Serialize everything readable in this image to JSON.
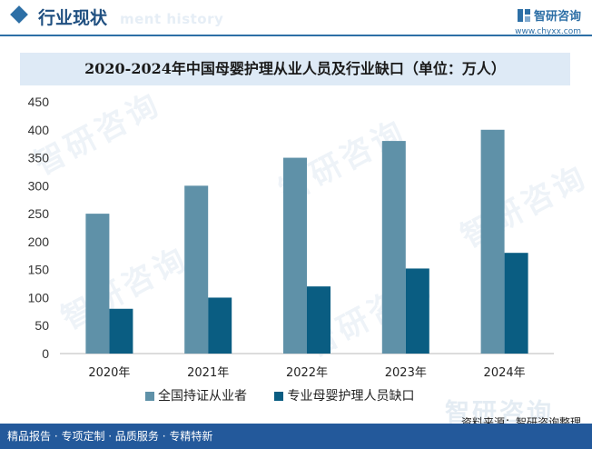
{
  "header": {
    "title": "行业现状",
    "ghost_text": "ment history",
    "brand_name": "智研咨询",
    "brand_url": "www.chyxx.com"
  },
  "watermark": {
    "text": "智研咨询"
  },
  "legend": {
    "items": [
      {
        "label": "全国持证从业者",
        "color": "#5f91a8"
      },
      {
        "label": "专业母婴护理人员缺口",
        "color": "#0a5d82"
      }
    ]
  },
  "source": {
    "mark": "智研咨询",
    "text": "资料来源：智研咨询整理"
  },
  "footer": {
    "text": "精品报告 · 专项定制 · 品质服务 · 专精特新"
  },
  "chart_data": {
    "type": "bar",
    "title": "2020-2024年中国母婴护理从业人员及行业缺口（单位：万人）",
    "xlabel": "",
    "ylabel": "",
    "categories": [
      "2020年",
      "2021年",
      "2022年",
      "2023年",
      "2024年"
    ],
    "ylim": [
      0,
      450
    ],
    "yticks": [
      0,
      50,
      100,
      150,
      200,
      250,
      300,
      350,
      400,
      450
    ],
    "grid": false,
    "legend_position": "bottom",
    "series": [
      {
        "name": "全国持证从业者",
        "values": [
          250,
          300,
          350,
          380,
          400
        ],
        "color": "#5f91a8"
      },
      {
        "name": "专业母婴护理人员缺口",
        "values": [
          80,
          100,
          120,
          152,
          180
        ],
        "color": "#0a5d82"
      }
    ]
  }
}
